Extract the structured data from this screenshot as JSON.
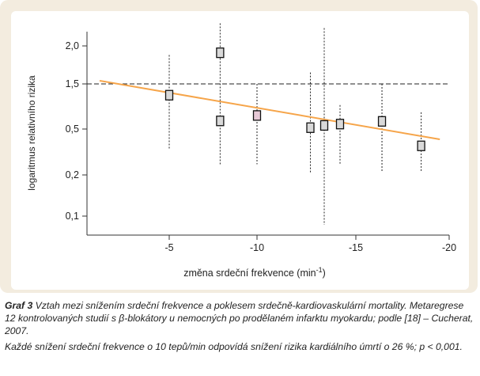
{
  "chart_data": {
    "type": "scatter",
    "xlabel_main": "změna srdeční frekvence (min",
    "xlabel_sup": "-1",
    "xlabel_close": ")",
    "ylabel": "logaritmus relativního rizika",
    "x_ticks": [
      {
        "value": -5,
        "label": "-5"
      },
      {
        "value": -10,
        "label": "-10"
      },
      {
        "value": -15,
        "label": "-15"
      },
      {
        "value": -20,
        "label": "-20"
      }
    ],
    "y_ticks": [
      {
        "label": "2,0"
      },
      {
        "label": "1,5"
      },
      {
        "label": "0,5"
      },
      {
        "label": "0,2"
      },
      {
        "label": "0,1"
      }
    ],
    "xlim": [
      0,
      -20
    ],
    "reference_line_y": "1,5",
    "regression_line": {
      "x": [
        -1.0,
        -19.5
      ],
      "y_label_units": [
        1.5,
        0.42
      ],
      "color": "#f6a54a"
    },
    "points": [
      {
        "x": -5.0,
        "y": 1.25,
        "ci_low": 0.37,
        "ci_high": 1.88,
        "highlight": false
      },
      {
        "x": -7.9,
        "y": 1.91,
        "ci_low": 0.27,
        "ci_high": 2.38,
        "highlight": false
      },
      {
        "x": -7.9,
        "y": 0.68,
        "ci_low": 0.27,
        "ci_high": 2.38,
        "highlight": false
      },
      {
        "x": -10.0,
        "y": 0.8,
        "ci_low": 0.27,
        "ci_high": 1.5,
        "highlight": true
      },
      {
        "x": -12.7,
        "y": 0.53,
        "ci_low": 0.21,
        "ci_high": 1.65,
        "highlight": false
      },
      {
        "x": -13.4,
        "y": 0.58,
        "ci_low": 0.04,
        "ci_high": 2.3,
        "highlight": false
      },
      {
        "x": -14.2,
        "y": 0.61,
        "ci_low": 0.27,
        "ci_high": 1.03,
        "highlight": false
      },
      {
        "x": -16.4,
        "y": 0.67,
        "ci_low": 0.22,
        "ci_high": 1.5,
        "highlight": false
      },
      {
        "x": -18.5,
        "y": 0.39,
        "ci_low": 0.22,
        "ci_high": 0.87,
        "highlight": false
      }
    ]
  },
  "caption": {
    "label": "Graf 3",
    "line1": "Vztah mezi snížením srdeční frekvence a poklesem srdečně-kardiovaskulární mortality. Metaregrese 12 kontrolovaných studií s β-blokátory u nemocných po prodělaném infarktu myokardu; podle [18] – Cucherat, 2007.",
    "line2": "Každé snížení srdeční frekvence o 10 tepů/min odpovídá snížení rizika kardiálního úmrtí o 26 %; p < 0,001."
  },
  "colors": {
    "panel": "#f3ecdf",
    "regression": "#f6a54a",
    "box_fill": "#d9d9d9",
    "box_highlight": "#e7c9d7",
    "axis": "#333333"
  }
}
